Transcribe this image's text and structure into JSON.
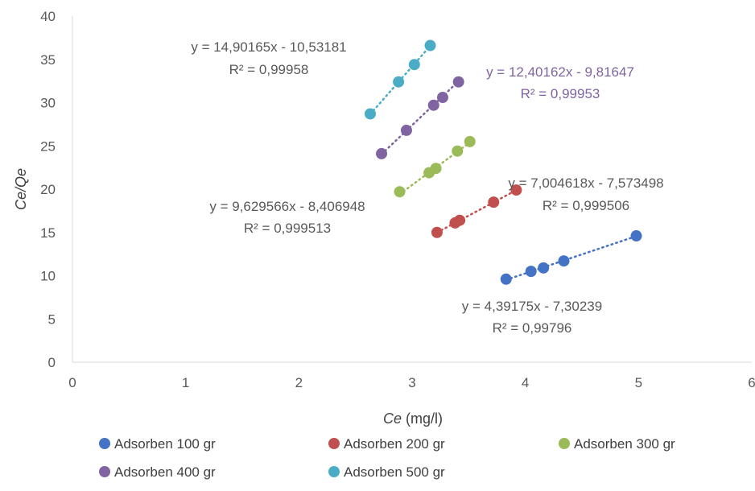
{
  "chart_data": {
    "type": "scatter",
    "title": "",
    "xlabel_italic": "Ce",
    "xlabel_rest": " (mg/l)",
    "ylabel": "Ce/Qe",
    "xlim": [
      0,
      6
    ],
    "ylim": [
      0,
      40
    ],
    "x_ticks": [
      "0",
      "1",
      "2",
      "3",
      "4",
      "5",
      "6"
    ],
    "y_ticks": [
      "0",
      "5",
      "10",
      "15",
      "20",
      "25",
      "30",
      "35",
      "40"
    ],
    "grid": false,
    "legend_position": "bottom",
    "series": [
      {
        "name": "Adsorben 100 gr",
        "color": "#4472C4",
        "x": [
          3.83,
          4.05,
          4.16,
          4.34,
          4.98
        ],
        "y": [
          9.6,
          10.5,
          10.9,
          11.7,
          14.6
        ],
        "trendline": {
          "slope": 4.39175,
          "intercept": -7.30239,
          "x_range": [
            3.83,
            4.98
          ]
        },
        "equation": "y = 4,39175x - 7,30239",
        "r2": "R² = 0,99796",
        "label_color": "#595959"
      },
      {
        "name": "Adsorben 200 gr",
        "color": "#C0504D",
        "x": [
          3.22,
          3.38,
          3.42,
          3.72,
          3.92
        ],
        "y": [
          15.0,
          16.1,
          16.4,
          18.5,
          19.9
        ],
        "trendline": {
          "slope": 7.004618,
          "intercept": -7.573498,
          "x_range": [
            3.22,
            3.92
          ]
        },
        "equation": "y = 7,004618x - 7,573498",
        "r2": "R² = 0,999506",
        "label_color": "#595959"
      },
      {
        "name": "Adsorben 300 gr",
        "color": "#9BBB59",
        "x": [
          2.89,
          3.15,
          3.21,
          3.4,
          3.51
        ],
        "y": [
          19.7,
          21.9,
          22.4,
          24.4,
          25.5
        ],
        "trendline": {
          "slope": 9.629566,
          "intercept": -8.406948,
          "x_range": [
            2.89,
            3.51
          ]
        },
        "equation": "y = 9,629566x - 8,406948",
        "r2": "R² = 0,999513",
        "label_color": "#595959"
      },
      {
        "name": "Adsorben 400 gr",
        "color": "#8064A2",
        "x": [
          2.73,
          2.95,
          3.19,
          3.27,
          3.41
        ],
        "y": [
          24.1,
          26.8,
          29.7,
          30.6,
          32.4
        ],
        "trendline": {
          "slope": 12.40162,
          "intercept": -9.81647,
          "x_range": [
            2.73,
            3.41
          ]
        },
        "equation": "y = 12,40162x - 9,81647",
        "r2": "R² = 0,99953",
        "label_color": "#8064A2"
      },
      {
        "name": "Adsorben 500 gr",
        "color": "#4BACC6",
        "x": [
          2.63,
          2.88,
          3.02,
          3.16
        ],
        "y": [
          28.7,
          32.4,
          34.4,
          36.6
        ],
        "trendline": {
          "slope": 14.90165,
          "intercept": -10.53181,
          "x_range": [
            2.63,
            3.16
          ]
        },
        "equation": "y = 14,90165x - 10,53181",
        "r2": "R² = 0,99958",
        "label_color": "#595959"
      }
    ]
  }
}
